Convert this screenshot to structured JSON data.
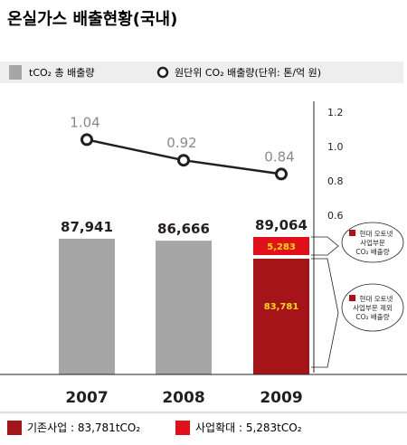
{
  "title": "온실가스 배출현황(국내)",
  "colors": {
    "bar_gray": "#a6a6a6",
    "base_red": "#a41419",
    "expansion_red": "#e2101a",
    "segment_label": "#ffde00",
    "line": "#231f20"
  },
  "legend": {
    "total": "tCO₂ 총 배출량",
    "intensity": "원단위 CO₂ 배출량(단위: 톤/억 원)"
  },
  "footer": {
    "base": "기존사업 : 83,781tCO₂",
    "expansion": "사업확대 : 5,283tCO₂"
  },
  "callouts": [
    {
      "icon": "hyundai-autonet-logo-icon",
      "lines": [
        "현대 오토넷",
        "사업부문",
        "CO₂ 배출량"
      ]
    },
    {
      "icon": "hyundai-autonet-logo-icon",
      "lines": [
        "현대 오토넷",
        "사업부문 제외",
        "CO₂ 배출량"
      ]
    }
  ],
  "chart_data": {
    "type": "bar",
    "categories": [
      "2007",
      "2008",
      "2009"
    ],
    "series": [
      {
        "values": [
          87941,
          86666,
          83781
        ]
      },
      {
        "values": [
          0,
          0,
          5283
        ]
      }
    ],
    "bar_labels": [
      "87,941",
      "86,666",
      "89,064"
    ],
    "segment_labels": [
      "83,781",
      "5,283"
    ],
    "line_series": {
      "type": "line",
      "values": [
        1.04,
        0.92,
        0.84
      ],
      "labels": [
        "1.04",
        "0.92",
        "0.84"
      ]
    },
    "right_axis": {
      "ticks": [
        "1.2",
        "1.0",
        "0.8",
        "0.6"
      ],
      "tick_values": [
        1.2,
        1.0,
        0.8,
        0.6
      ],
      "range": [
        0.6,
        1.2
      ]
    }
  }
}
